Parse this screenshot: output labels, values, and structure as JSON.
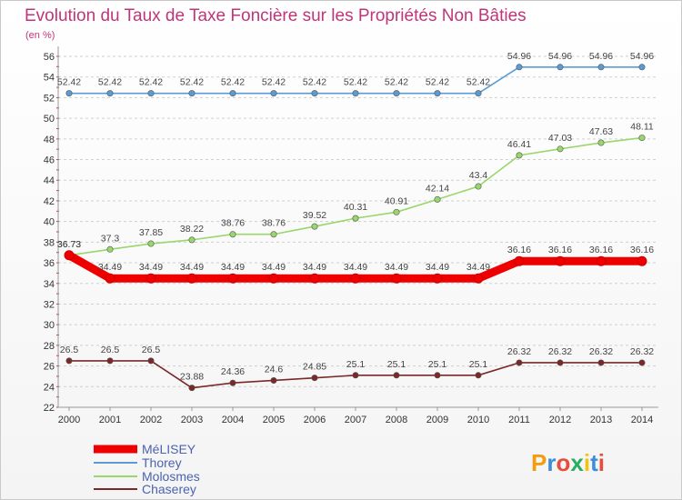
{
  "chart_data": {
    "type": "line",
    "title": "Evolution du Taux de Taxe Foncière sur les Propriétés Non Bâties",
    "ylabel": "(en %)",
    "xlabel": "",
    "ylim": [
      22,
      56
    ],
    "yticks": [
      22,
      24,
      26,
      28,
      30,
      32,
      34,
      36,
      38,
      40,
      42,
      44,
      46,
      48,
      50,
      52,
      54,
      56
    ],
    "categories": [
      "2000",
      "2001",
      "2002",
      "2003",
      "2004",
      "2005",
      "2006",
      "2007",
      "2008",
      "2009",
      "2010",
      "2011",
      "2012",
      "2013",
      "2014"
    ],
    "grid": "horizontal dashed",
    "legend_position": "bottom-left",
    "series": [
      {
        "name": "Thorey",
        "color": "#5b9bd5",
        "values": [
          52.42,
          52.42,
          52.42,
          52.42,
          52.42,
          52.42,
          52.42,
          52.42,
          52.42,
          52.42,
          52.42,
          54.96,
          54.96,
          54.96,
          54.96
        ],
        "labels": [
          "52.42",
          "52.42",
          "52.42",
          "52.42",
          "52.42",
          "52.42",
          "52.42",
          "52.42",
          "52.42",
          "52.42",
          "52.42",
          "54.96",
          "54.96",
          "54.96",
          "54.96"
        ]
      },
      {
        "name": "Molosmes",
        "color": "#99d66b",
        "values": [
          36.73,
          37.3,
          37.85,
          38.22,
          38.76,
          38.76,
          39.52,
          40.31,
          40.91,
          42.14,
          43.4,
          46.41,
          47.03,
          47.63,
          48.11
        ],
        "labels": [
          "36.73",
          "37.3",
          "37.85",
          "38.22",
          "38.76",
          "38.76",
          "39.52",
          "40.31",
          "40.91",
          "42.14",
          "43.4",
          "46.41",
          "47.03",
          "47.63",
          "48.11"
        ]
      },
      {
        "name": "Chaserey",
        "color": "#7a2828",
        "values": [
          26.5,
          26.5,
          26.5,
          23.88,
          24.36,
          24.6,
          24.85,
          25.1,
          25.1,
          25.1,
          25.1,
          26.32,
          26.32,
          26.32,
          26.32
        ],
        "labels": [
          "26.5",
          "26.5",
          "26.5",
          "23.88",
          "24.36",
          "24.6",
          "24.85",
          "25.1",
          "25.1",
          "25.1",
          "25.1",
          "26.32",
          "26.32",
          "26.32",
          "26.32"
        ]
      },
      {
        "name": "MéLISEY",
        "color": "#ee0000",
        "highlight": true,
        "values": [
          36.73,
          34.49,
          34.49,
          34.49,
          34.49,
          34.49,
          34.49,
          34.49,
          34.49,
          34.49,
          34.49,
          36.16,
          36.16,
          36.16,
          36.16
        ],
        "labels": [
          "36.73",
          "34.49",
          "34.49",
          "34.49",
          "34.49",
          "34.49",
          "34.49",
          "34.49",
          "34.49",
          "34.49",
          "34.49",
          "36.16",
          "36.16",
          "36.16",
          "36.16"
        ]
      }
    ],
    "legend": [
      "MéLISEY",
      "Thorey",
      "Molosmes",
      "Chaserey"
    ]
  },
  "logo": {
    "text": "Proxiti",
    "letters": [
      "P",
      "r",
      "o",
      "x",
      "i",
      "t",
      "i"
    ],
    "colors": [
      "#f39c12",
      "#3a8fd8",
      "#e74c3c",
      "#27ae60",
      "#f1c40f",
      "#3a8fd8",
      "#e74c3c"
    ]
  }
}
